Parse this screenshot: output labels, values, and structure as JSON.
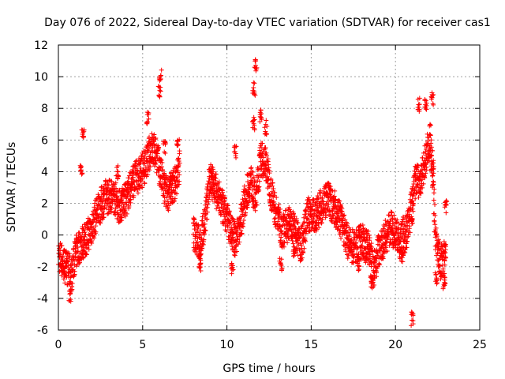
{
  "chart_data": {
    "type": "scatter",
    "title": "Day 076 of 2022, Sidereal Day-to-day VTEC variation (SDTVAR) for receiver cas1",
    "xlabel": "GPS time / hours",
    "ylabel": "SDTVAR / TECUs",
    "xlim": [
      0,
      25
    ],
    "ylim": [
      -6,
      12
    ],
    "xticks": [
      0,
      5,
      10,
      15,
      20,
      25
    ],
    "yticks": [
      -6,
      -4,
      -2,
      0,
      2,
      4,
      6,
      8,
      10,
      12
    ],
    "grid": true,
    "marker": "+",
    "color": "#ff0000",
    "trend": [
      [
        0.0,
        -1.2
      ],
      [
        0.3,
        -1.8
      ],
      [
        0.6,
        -2.2
      ],
      [
        0.8,
        -2.5
      ],
      [
        1.0,
        -1.2
      ],
      [
        1.3,
        -0.6
      ],
      [
        1.6,
        -0.3
      ],
      [
        2.0,
        0.5
      ],
      [
        2.3,
        1.5
      ],
      [
        2.8,
        2.4
      ],
      [
        3.3,
        2.5
      ],
      [
        3.6,
        1.8
      ],
      [
        4.0,
        2.2
      ],
      [
        4.4,
        3.4
      ],
      [
        4.8,
        3.8
      ],
      [
        5.2,
        4.5
      ],
      [
        5.5,
        5.5
      ],
      [
        5.8,
        5.2
      ],
      [
        6.0,
        4.2
      ],
      [
        6.3,
        2.8
      ],
      [
        6.6,
        2.6
      ],
      [
        7.0,
        3.5
      ],
      [
        7.2,
        4.5
      ],
      [
        8.0,
        0.2
      ],
      [
        8.4,
        -0.6
      ],
      [
        8.7,
        1.0
      ],
      [
        9.0,
        3.6
      ],
      [
        9.2,
        3.2
      ],
      [
        9.5,
        2.4
      ],
      [
        9.8,
        1.5
      ],
      [
        10.2,
        0.5
      ],
      [
        10.5,
        -0.4
      ],
      [
        10.8,
        0.8
      ],
      [
        11.1,
        2.4
      ],
      [
        11.4,
        3.5
      ],
      [
        11.7,
        2.2
      ],
      [
        12.0,
        4.8
      ],
      [
        12.3,
        4.6
      ],
      [
        12.6,
        2.8
      ],
      [
        12.9,
        1.5
      ],
      [
        13.3,
        0.2
      ],
      [
        13.7,
        0.8
      ],
      [
        14.0,
        0.2
      ],
      [
        14.4,
        -0.7
      ],
      [
        14.8,
        1.3
      ],
      [
        15.2,
        1.2
      ],
      [
        15.6,
        1.8
      ],
      [
        16.0,
        2.2
      ],
      [
        16.4,
        1.7
      ],
      [
        16.8,
        0.8
      ],
      [
        17.2,
        -0.6
      ],
      [
        17.6,
        -0.8
      ],
      [
        18.0,
        -0.4
      ],
      [
        18.4,
        -0.8
      ],
      [
        18.7,
        -2.2
      ],
      [
        19.0,
        -1.0
      ],
      [
        19.4,
        -0.1
      ],
      [
        19.7,
        0.4
      ],
      [
        20.0,
        0.2
      ],
      [
        20.4,
        -0.8
      ],
      [
        20.8,
        0.8
      ],
      [
        21.2,
        3.5
      ],
      [
        21.5,
        3.2
      ],
      [
        21.8,
        5.0
      ],
      [
        22.1,
        6.2
      ],
      [
        22.4,
        -0.5
      ],
      [
        22.7,
        -1.8
      ],
      [
        23.0,
        -1.2
      ]
    ],
    "clusters": [
      [
        0.4,
        -2.0
      ],
      [
        0.7,
        -3.8
      ],
      [
        1.35,
        4.2
      ],
      [
        1.45,
        6.4
      ],
      [
        3.5,
        4.0
      ],
      [
        5.3,
        7.4
      ],
      [
        6.0,
        9.0
      ],
      [
        6.05,
        10.0
      ],
      [
        6.3,
        5.5
      ],
      [
        6.7,
        3.5
      ],
      [
        7.1,
        5.8
      ],
      [
        8.4,
        -2.0
      ],
      [
        9.1,
        4.1
      ],
      [
        10.3,
        -2.0
      ],
      [
        11.6,
        9.2
      ],
      [
        11.7,
        10.8
      ],
      [
        11.6,
        7.0
      ],
      [
        12.0,
        7.5
      ],
      [
        12.3,
        6.8
      ],
      [
        10.5,
        5.2
      ],
      [
        13.2,
        -1.8
      ],
      [
        14.0,
        -1.0
      ],
      [
        17.8,
        -1.8
      ],
      [
        18.6,
        -3.0
      ],
      [
        20.4,
        0.8
      ],
      [
        21.0,
        -5.3
      ],
      [
        21.0,
        1.0
      ],
      [
        21.4,
        8.2
      ],
      [
        21.8,
        8.3
      ],
      [
        22.2,
        8.6
      ],
      [
        22.2,
        4.5
      ],
      [
        22.4,
        -2.8
      ],
      [
        22.9,
        -3.0
      ],
      [
        23.0,
        1.8
      ]
    ]
  }
}
